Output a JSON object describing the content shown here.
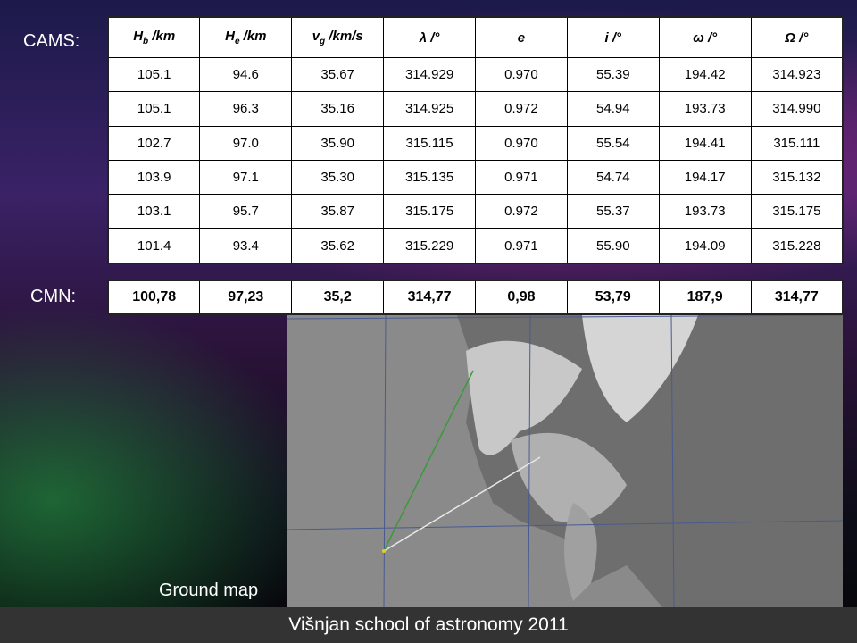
{
  "labels": {
    "cams": "CAMS:",
    "cmn": "CMN:",
    "ground_map": "Ground map"
  },
  "cams_table": {
    "headers": [
      {
        "symbol": "H",
        "subscript": "b",
        "unit": " /km"
      },
      {
        "symbol": "H",
        "subscript": "e",
        "unit": " /km"
      },
      {
        "symbol": "v",
        "subscript": "g",
        "unit": " /km/s"
      },
      {
        "symbol": "λ",
        "unit": " /°"
      },
      {
        "symbol": "e"
      },
      {
        "symbol": "i",
        "unit": " /°"
      },
      {
        "symbol": "ω",
        "unit": " /°"
      },
      {
        "symbol": "Ω",
        "unit": " /°"
      }
    ],
    "rows": [
      [
        "105.1",
        "94.6",
        "35.67",
        "314.929",
        "0.970",
        "55.39",
        "194.42",
        "314.923"
      ],
      [
        "105.1",
        "96.3",
        "35.16",
        "314.925",
        "0.972",
        "54.94",
        "193.73",
        "314.990"
      ],
      [
        "102.7",
        "97.0",
        "35.90",
        "315.115",
        "0.970",
        "55.54",
        "194.41",
        "315.111"
      ],
      [
        "103.9",
        "97.1",
        "35.30",
        "315.135",
        "0.971",
        "54.74",
        "194.17",
        "315.132"
      ],
      [
        "103.1",
        "95.7",
        "35.87",
        "315.175",
        "0.972",
        "55.37",
        "193.73",
        "315.175"
      ],
      [
        "101.4",
        "93.4",
        "35.62",
        "315.229",
        "0.971",
        "55.90",
        "194.09",
        "315.228"
      ]
    ]
  },
  "cmn_table": {
    "rows": [
      [
        "100,78",
        "97,23",
        "35,2",
        "314,77",
        "0,98",
        "53,79",
        "187,9",
        "314,77"
      ]
    ]
  },
  "footer": "Višnjan school of astronomy 2011"
}
